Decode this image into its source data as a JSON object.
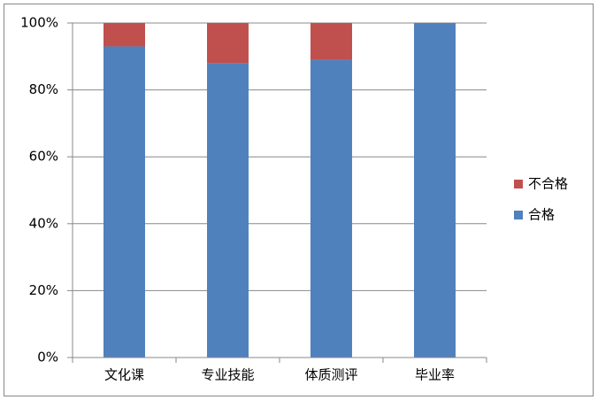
{
  "chart_data": {
    "type": "stacked_bar",
    "categories": [
      "文化课",
      "专业技能",
      "体质测评",
      "毕业率"
    ],
    "series": [
      {
        "name": "合格",
        "color": "#4f81bd",
        "values": [
          93,
          88,
          89,
          100
        ]
      },
      {
        "name": "不合格",
        "color": "#c0504d",
        "values": [
          7,
          12,
          11,
          0
        ]
      }
    ],
    "ylim": [
      0,
      100
    ],
    "yticks": [
      {
        "value": 0,
        "label": "0%"
      },
      {
        "value": 20,
        "label": "20%"
      },
      {
        "value": 40,
        "label": "40%"
      },
      {
        "value": 60,
        "label": "60%"
      },
      {
        "value": 80,
        "label": "80%"
      },
      {
        "value": 100,
        "label": "100%"
      }
    ],
    "grid": true,
    "legend": "right"
  }
}
